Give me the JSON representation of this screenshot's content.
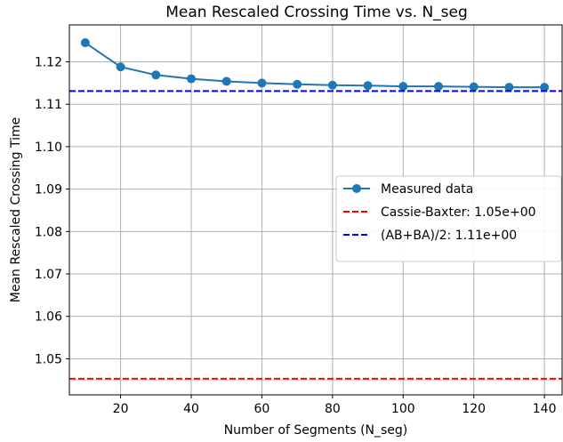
{
  "chart_data": {
    "type": "line",
    "title": "Mean Rescaled Crossing Time vs. N_seg",
    "xlabel": "Number of Segments (N_seg)",
    "ylabel": "Mean Rescaled Crossing Time",
    "xlim": [
      5.5,
      145
    ],
    "ylim": [
      1.0415,
      1.1287
    ],
    "xticks": [
      20,
      40,
      60,
      80,
      100,
      120,
      140
    ],
    "yticks": [
      1.05,
      1.06,
      1.07,
      1.08,
      1.09,
      1.1,
      1.11,
      1.12
    ],
    "ytick_labels": [
      "1.05",
      "1.06",
      "1.07",
      "1.08",
      "1.09",
      "1.10",
      "1.11",
      "1.12"
    ],
    "grid": true,
    "legend_position": "center-right",
    "series": [
      {
        "name": "Measured data",
        "kind": "line-marker",
        "color": "#1f77b4",
        "x": [
          10,
          20,
          30,
          40,
          50,
          60,
          70,
          80,
          90,
          100,
          110,
          120,
          130,
          140
        ],
        "y": [
          1.1245,
          1.1188,
          1.1169,
          1.116,
          1.1154,
          1.115,
          1.1147,
          1.1145,
          1.1144,
          1.1142,
          1.1142,
          1.1141,
          1.114,
          1.114
        ]
      },
      {
        "name": "Cassie-Baxter: 1.05e+00",
        "kind": "hline-dashed",
        "color": "#ff0000",
        "y": 1.0453
      },
      {
        "name": "(AB+BA)/2: 1.11e+00",
        "kind": "hline-dashed",
        "color": "#0000ff",
        "y": 1.1131
      }
    ]
  }
}
